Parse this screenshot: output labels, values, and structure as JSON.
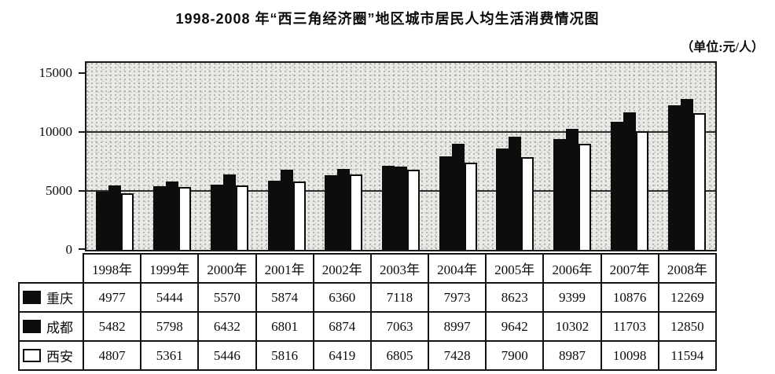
{
  "title": "1998-2008 年“西三角经济圈”地区城市居民人均生活消费情况图",
  "unit_label": "（单位:元/人）",
  "chart_data": {
    "type": "bar",
    "title": "1998-2008 年“西三角经济圈”地区城市居民人均生活消费情况图",
    "unit": "元/人",
    "categories": [
      "1998年",
      "1999年",
      "2000年",
      "2001年",
      "2002年",
      "2003年",
      "2004年",
      "2005年",
      "2006年",
      "2007年",
      "2008年"
    ],
    "series": [
      {
        "id": "chongqing",
        "name": "重庆",
        "style": "solid",
        "color": "#0d0d0d",
        "values": [
          4977,
          5444,
          5570,
          5874,
          6360,
          7118,
          7973,
          8623,
          9399,
          10876,
          12269
        ]
      },
      {
        "id": "chengdu",
        "name": "成都",
        "style": "solid",
        "color": "#0d0d0d",
        "values": [
          5482,
          5798,
          6432,
          6801,
          6874,
          7063,
          8997,
          9642,
          10302,
          11703,
          12850
        ]
      },
      {
        "id": "xian",
        "name": "西安",
        "style": "outlined",
        "color": "#ffffff",
        "values": [
          4807,
          5361,
          5446,
          5816,
          6419,
          6805,
          7428,
          7900,
          8987,
          10098,
          11594
        ]
      }
    ],
    "xlabel": "",
    "ylabel": "",
    "yticks": [
      0,
      5000,
      10000,
      15000
    ],
    "gridlines": [
      5000,
      10000
    ],
    "ylim": [
      0,
      15900
    ],
    "grid": true,
    "legend_position": "table-left-column",
    "plot_background": "speckled-gray",
    "background_color": "#ebe9e5",
    "bar_colors": {
      "chongqing": "#0d0d0d",
      "chengdu": "#0d0d0d",
      "xian": "#ffffff"
    }
  }
}
